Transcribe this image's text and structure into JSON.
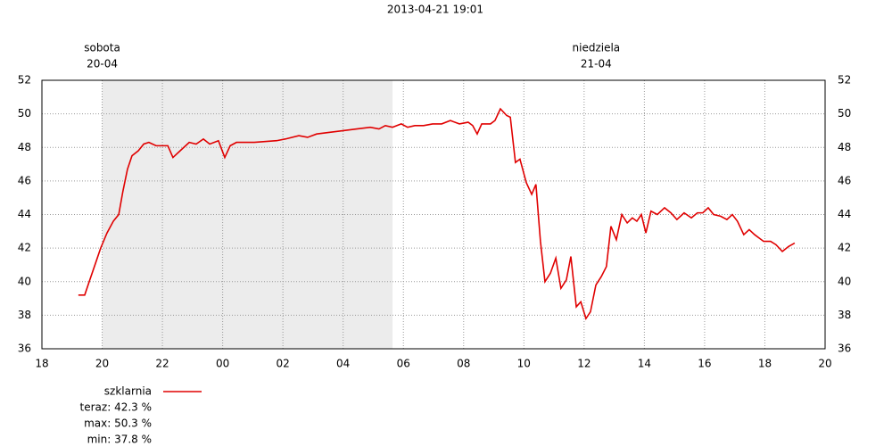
{
  "chart_data": {
    "type": "line",
    "title": "2013-04-21 19:01",
    "day_labels": [
      {
        "name": "sobota",
        "date": "20-04",
        "x": 20
      },
      {
        "name": "niedziela",
        "date": "21-04",
        "x": 36.4
      }
    ],
    "shaded": [
      20,
      29.64
    ],
    "xlim": [
      18,
      44
    ],
    "xticks": [
      {
        "value": 18,
        "label": "18"
      },
      {
        "value": 20,
        "label": "20"
      },
      {
        "value": 22,
        "label": "22"
      },
      {
        "value": 24,
        "label": "00"
      },
      {
        "value": 26,
        "label": "02"
      },
      {
        "value": 28,
        "label": "04"
      },
      {
        "value": 30,
        "label": "06"
      },
      {
        "value": 32,
        "label": "08"
      },
      {
        "value": 34,
        "label": "10"
      },
      {
        "value": 36,
        "label": "12"
      },
      {
        "value": 38,
        "label": "14"
      },
      {
        "value": 40,
        "label": "16"
      },
      {
        "value": 42,
        "label": "18"
      },
      {
        "value": 44,
        "label": "20"
      }
    ],
    "ylim": [
      36,
      52
    ],
    "yticks": [
      36,
      38,
      40,
      42,
      44,
      46,
      48,
      50,
      52
    ],
    "grid": true,
    "series": [
      {
        "name": "szklarnia",
        "color": "#e00000",
        "x": [
          19.21,
          19.42,
          19.57,
          19.78,
          19.95,
          20.16,
          20.37,
          20.55,
          20.69,
          20.84,
          20.99,
          21.2,
          21.38,
          21.55,
          21.79,
          22.18,
          22.35,
          22.59,
          22.89,
          23.12,
          23.36,
          23.57,
          23.86,
          24.07,
          24.25,
          24.46,
          25.05,
          25.79,
          26.08,
          26.53,
          26.82,
          27.12,
          27.56,
          28.01,
          28.45,
          28.9,
          29.19,
          29.4,
          29.64,
          29.93,
          30.14,
          30.38,
          30.67,
          30.97,
          31.27,
          31.56,
          31.86,
          32.15,
          32.3,
          32.45,
          32.6,
          32.89,
          33.04,
          33.22,
          33.43,
          33.55,
          33.72,
          33.87,
          34.08,
          34.26,
          34.4,
          34.55,
          34.7,
          34.88,
          35.06,
          35.23,
          35.41,
          35.56,
          35.74,
          35.89,
          36.06,
          36.21,
          36.39,
          36.57,
          36.74,
          36.89,
          37.07,
          37.25,
          37.43,
          37.6,
          37.75,
          37.9,
          38.05,
          38.22,
          38.43,
          38.67,
          38.88,
          39.08,
          39.32,
          39.56,
          39.76,
          39.94,
          40.12,
          40.3,
          40.53,
          40.74,
          40.92,
          41.09,
          41.3,
          41.48,
          41.66,
          41.81,
          41.96,
          42.19,
          42.37,
          42.58,
          42.79,
          42.99
        ],
        "values": [
          39.2,
          39.2,
          40.0,
          41.1,
          42.0,
          42.9,
          43.6,
          44.0,
          45.4,
          46.7,
          47.5,
          47.8,
          48.2,
          48.3,
          48.1,
          48.1,
          47.4,
          47.8,
          48.3,
          48.2,
          48.5,
          48.2,
          48.4,
          47.4,
          48.1,
          48.3,
          48.3,
          48.4,
          48.5,
          48.7,
          48.6,
          48.8,
          48.9,
          49.0,
          49.1,
          49.2,
          49.1,
          49.3,
          49.2,
          49.4,
          49.2,
          49.3,
          49.3,
          49.4,
          49.4,
          49.6,
          49.4,
          49.5,
          49.3,
          48.8,
          49.4,
          49.4,
          49.6,
          50.3,
          49.9,
          49.8,
          47.1,
          47.3,
          45.9,
          45.2,
          45.8,
          42.4,
          40.0,
          40.5,
          41.4,
          39.6,
          40.1,
          41.5,
          38.5,
          38.8,
          37.8,
          38.2,
          39.8,
          40.3,
          40.9,
          43.3,
          42.5,
          44.0,
          43.5,
          43.8,
          43.6,
          44.0,
          42.9,
          44.2,
          44.0,
          44.4,
          44.1,
          43.7,
          44.1,
          43.8,
          44.1,
          44.1,
          44.4,
          44.0,
          43.9,
          43.7,
          44.0,
          43.6,
          42.8,
          43.1,
          42.8,
          42.6,
          42.4,
          42.4,
          42.2,
          41.8,
          42.1,
          42.3
        ]
      }
    ],
    "stats": [
      "teraz: 42.3 %",
      "max: 50.3 %",
      "min: 37.8 %"
    ]
  }
}
